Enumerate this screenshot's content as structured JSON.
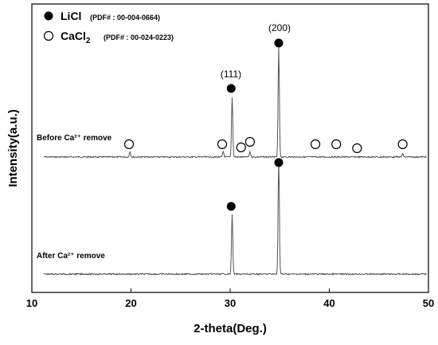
{
  "chart_data": {
    "type": "line",
    "xlabel": "2-theta(Deg.)",
    "ylabel": "Intensity(a.u.)",
    "xlim": [
      10,
      50
    ],
    "x_ticks": [
      10,
      20,
      30,
      40,
      50
    ],
    "y_ticks_shown": false,
    "grid": false,
    "legend": {
      "placement": "top-left",
      "entries": [
        {
          "marker": "filled-circle",
          "name": "LiCl",
          "pdf": "(PDF# : 00-004-0664)"
        },
        {
          "marker": "open-circle",
          "name": "CaCl",
          "subscript": "2",
          "pdf": "(PDF# : 00-024-0223)"
        }
      ]
    },
    "series": [
      {
        "name": "Before Ca²⁺ remove",
        "color": "#555555",
        "baseline": 0.6,
        "peaks": [
          {
            "x": 19.9,
            "height": 0.05
          },
          {
            "x": 29.3,
            "height": 0.05
          },
          {
            "x": 30.2,
            "height": 0.55
          },
          {
            "x": 32.0,
            "height": 0.05
          },
          {
            "x": 34.9,
            "height": 1.0
          },
          {
            "x": 47.4,
            "height": 0.03
          }
        ],
        "markers": [
          {
            "x": 30.1,
            "type": "filled-circle"
          },
          {
            "x": 34.9,
            "type": "filled-circle"
          },
          {
            "x": 19.8,
            "type": "open-circle"
          },
          {
            "x": 29.2,
            "type": "open-circle"
          },
          {
            "x": 31.1,
            "type": "open-circle"
          },
          {
            "x": 32.0,
            "type": "open-circle"
          },
          {
            "x": 38.6,
            "type": "open-circle"
          },
          {
            "x": 40.7,
            "type": "open-circle"
          },
          {
            "x": 42.8,
            "type": "open-circle"
          },
          {
            "x": 47.4,
            "type": "open-circle"
          }
        ]
      },
      {
        "name": "After Ca²⁺ remove",
        "color": "#555555",
        "baseline": 0,
        "peaks": [
          {
            "x": 30.2,
            "height": 0.52
          },
          {
            "x": 34.9,
            "height": 1.0
          }
        ],
        "markers": [
          {
            "x": 30.1,
            "type": "filled-circle"
          },
          {
            "x": 34.9,
            "type": "filled-circle"
          }
        ]
      }
    ],
    "annotations": [
      {
        "text": "(111)",
        "x": 30.1
      },
      {
        "text": "(200)",
        "x": 34.9
      }
    ]
  }
}
